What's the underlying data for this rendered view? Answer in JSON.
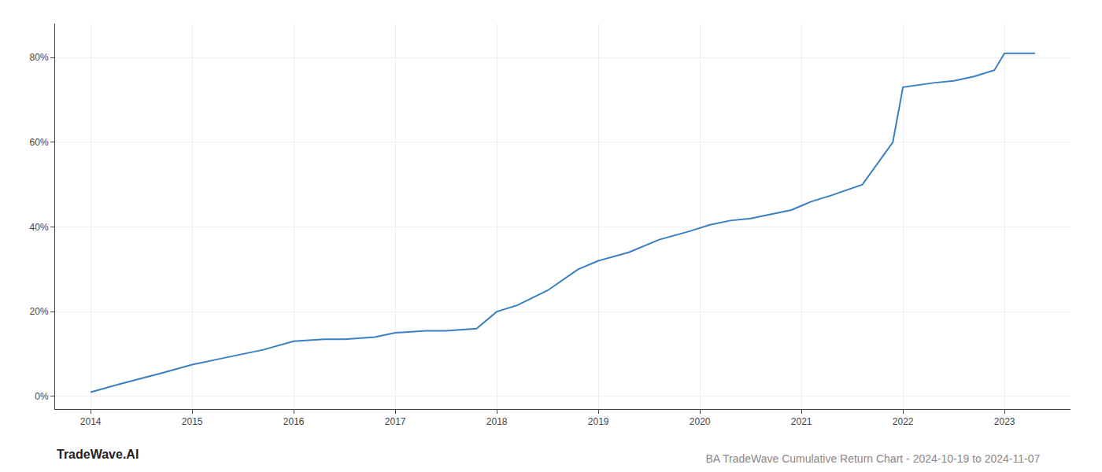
{
  "chart_data": {
    "type": "line",
    "title": "BA TradeWave Cumulative Return Chart - 2024-10-19 to 2024-11-07",
    "annotations": [
      "TradeWave.AI"
    ],
    "x": [
      2014.0,
      2014.3,
      2014.7,
      2015.0,
      2015.3,
      2015.7,
      2016.0,
      2016.3,
      2016.5,
      2016.8,
      2017.0,
      2017.3,
      2017.5,
      2017.8,
      2018.0,
      2018.2,
      2018.5,
      2018.8,
      2019.0,
      2019.3,
      2019.6,
      2019.9,
      2020.1,
      2020.3,
      2020.5,
      2020.7,
      2020.9,
      2021.0,
      2021.1,
      2021.3,
      2021.6,
      2021.9,
      2022.0,
      2022.3,
      2022.5,
      2022.7,
      2022.9,
      2023.0,
      2023.3
    ],
    "values": [
      0.01,
      0.03,
      0.055,
      0.075,
      0.09,
      0.11,
      0.13,
      0.135,
      0.135,
      0.14,
      0.15,
      0.155,
      0.155,
      0.16,
      0.2,
      0.215,
      0.25,
      0.3,
      0.32,
      0.34,
      0.37,
      0.39,
      0.405,
      0.415,
      0.42,
      0.43,
      0.44,
      0.45,
      0.46,
      0.475,
      0.5,
      0.6,
      0.73,
      0.74,
      0.745,
      0.755,
      0.77,
      0.81,
      0.81
    ],
    "color": "#3a7fc1",
    "xlim": [
      2013.65,
      2023.65
    ],
    "xticks": [
      2014,
      2015,
      2016,
      2017,
      2018,
      2019,
      2020,
      2021,
      2022,
      2023
    ],
    "ylim": [
      -0.03,
      0.88
    ],
    "yticks": [
      {
        "value": 0.0,
        "label": "0%"
      },
      {
        "value": 0.2,
        "label": "20%"
      },
      {
        "value": 0.4,
        "label": "40%"
      },
      {
        "value": 0.6,
        "label": "60%"
      },
      {
        "value": 0.8,
        "label": "80%"
      }
    ],
    "grid": true
  }
}
